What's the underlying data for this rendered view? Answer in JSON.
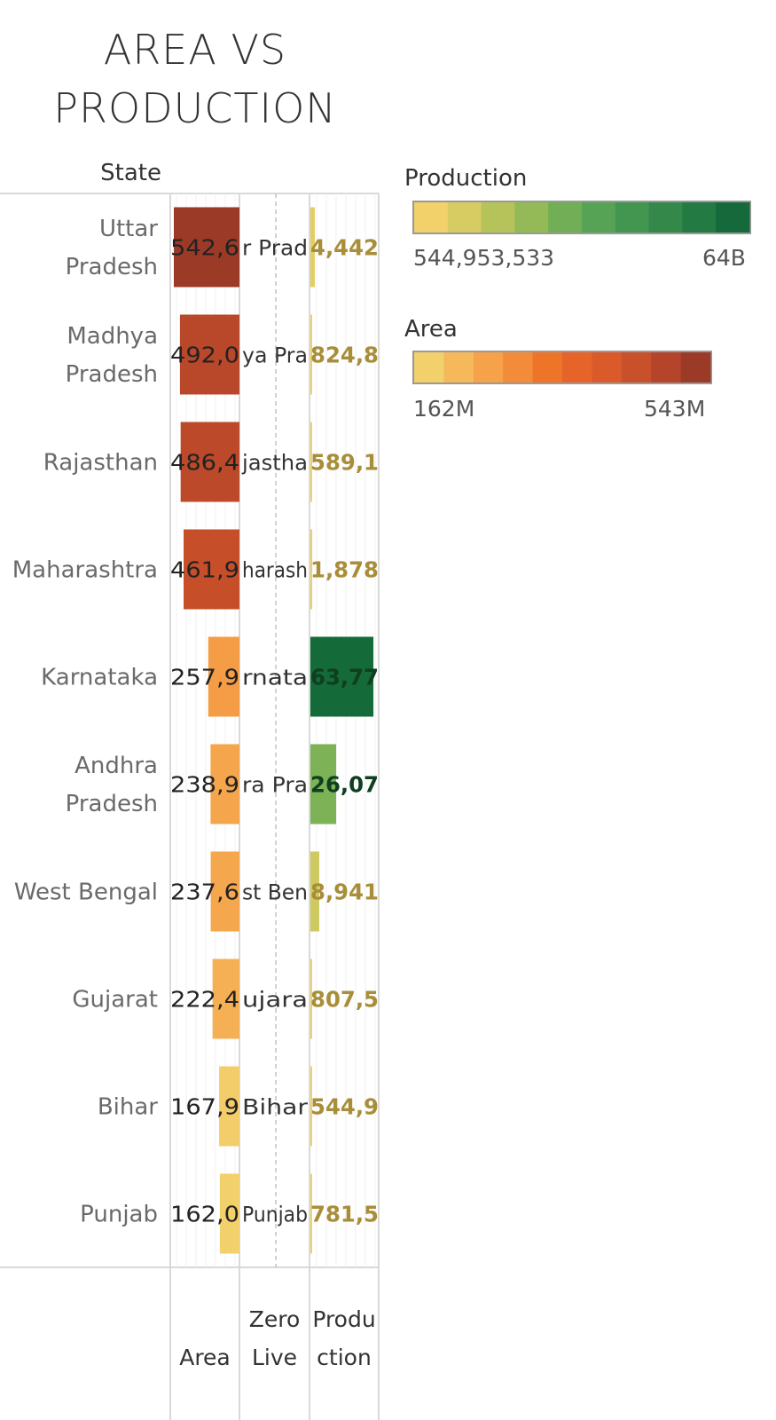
{
  "chart_data": {
    "type": "bar",
    "title": [
      "AREA VS",
      "PRODUCTION"
    ],
    "row_header": "State",
    "column_headers": [
      {
        "lines": [
          "Area"
        ]
      },
      {
        "lines": [
          "Zero",
          "Live"
        ]
      },
      {
        "lines": [
          "Produ",
          "ction"
        ]
      }
    ],
    "rows": [
      {
        "state": [
          "Uttar",
          "Pradesh"
        ],
        "area": 542.6,
        "area_label": "542,6",
        "zero_label": "r Prad",
        "production": 4.442,
        "production_label": "4,442"
      },
      {
        "state": [
          "Madhya",
          "Pradesh"
        ],
        "area": 492.0,
        "area_label": "492,0",
        "zero_label": "ya Pra",
        "production": 0.824,
        "production_label": "824,8"
      },
      {
        "state": [
          "Rajasthan"
        ],
        "area": 486.4,
        "area_label": "486,4",
        "zero_label": "jastha",
        "production": 0.589,
        "production_label": "589,1"
      },
      {
        "state": [
          "Maharashtra"
        ],
        "area": 461.9,
        "area_label": "461,9",
        "zero_label": "harash",
        "production": 1.878,
        "production_label": "1,878"
      },
      {
        "state": [
          "Karnataka"
        ],
        "area": 257.9,
        "area_label": "257,9",
        "zero_label": "rnata",
        "production": 63.77,
        "production_label": "63,77"
      },
      {
        "state": [
          "Andhra",
          "Pradesh"
        ],
        "area": 238.9,
        "area_label": "238,9",
        "zero_label": "ra Pra",
        "production": 26.07,
        "production_label": "26,07"
      },
      {
        "state": [
          "West Bengal"
        ],
        "area": 237.6,
        "area_label": "237,6",
        "zero_label": "st Ben",
        "production": 8.941,
        "production_label": "8,941"
      },
      {
        "state": [
          "Gujarat"
        ],
        "area": 222.4,
        "area_label": "222,4",
        "zero_label": "ujara",
        "production": 0.8075,
        "production_label": "807,5"
      },
      {
        "state": [
          "Bihar"
        ],
        "area": 167.9,
        "area_label": "167,9",
        "zero_label": "Bihar",
        "production": 0.545,
        "production_label": "544,9"
      },
      {
        "state": [
          "Punjab"
        ],
        "area": 162.0,
        "area_label": "162,0",
        "zero_label": "Punjab",
        "production": 0.7815,
        "production_label": "781,5"
      }
    ],
    "area_xlim": [
      0,
      542.6
    ],
    "production_xlim": [
      0,
      70
    ],
    "legends": {
      "production": {
        "title": "Production",
        "min_label": "544,953,533",
        "max_label": "64B",
        "colors": [
          "#f2d16b",
          "#d6cc62",
          "#b5c35a",
          "#94b957",
          "#72ae56",
          "#56a355",
          "#439650",
          "#33884a",
          "#237a43",
          "#15693a"
        ]
      },
      "area": {
        "title": "Area",
        "min_label": "162M",
        "max_label": "543M",
        "colors": [
          "#f2d06b",
          "#f5b95c",
          "#f5a24a",
          "#f28c3a",
          "#ee7528",
          "#e6642a",
          "#da5a2a",
          "#c8502a",
          "#b5452a",
          "#9c3a28"
        ]
      }
    },
    "colors": {
      "production_label": "#a98e3a",
      "production_label_dark": "#0e3f1e"
    }
  }
}
